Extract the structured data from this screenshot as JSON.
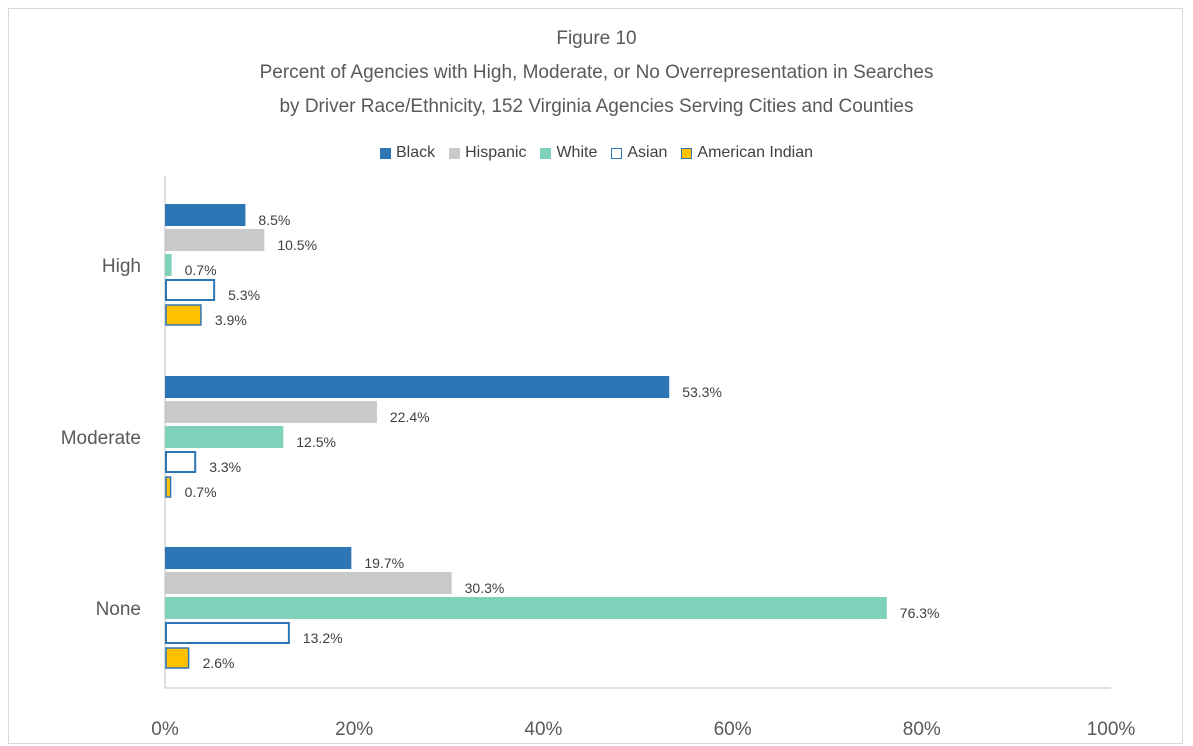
{
  "chart_data": {
    "type": "bar",
    "orientation": "horizontal",
    "title": "Figure 10",
    "subtitle_lines": [
      "Percent of Agencies with High, Moderate, or No Overrepresentation in Searches",
      "by Driver Race/Ethnicity, 152 Virginia Agencies Serving Cities and Counties"
    ],
    "categories": [
      "High",
      "Moderate",
      "None"
    ],
    "series": [
      {
        "name": "Black",
        "values": [
          8.5,
          53.3,
          19.7
        ],
        "labels": [
          "8.5%",
          "53.3%",
          "19.7%"
        ],
        "color": "#2e75b6",
        "style": "filled"
      },
      {
        "name": "Hispanic",
        "values": [
          10.5,
          22.4,
          30.3
        ],
        "labels": [
          "10.5%",
          "22.4%",
          "30.3%"
        ],
        "color": "#c9c9c9",
        "style": "filled"
      },
      {
        "name": "White",
        "values": [
          0.7,
          12.5,
          76.3
        ],
        "labels": [
          "0.7%",
          "12.5%",
          "76.3%"
        ],
        "color": "#7fd1bb",
        "style": "filled"
      },
      {
        "name": "Asian",
        "values": [
          5.3,
          3.3,
          13.2
        ],
        "labels": [
          "5.3%",
          "3.3%",
          "13.2%"
        ],
        "color": "#2e75b6",
        "style": "outline"
      },
      {
        "name": "American Indian",
        "values": [
          3.9,
          0.7,
          2.6
        ],
        "labels": [
          "3.9%",
          "0.7%",
          "2.6%"
        ],
        "color": "#ffc000",
        "style": "filled-outlined",
        "outline": "#2e75b6"
      }
    ],
    "x_ticks": [
      "0%",
      "20%",
      "40%",
      "60%",
      "80%",
      "100%"
    ],
    "xlim": [
      0,
      100
    ],
    "xlabel": "",
    "ylabel": "",
    "grid": false,
    "legend_position": "top"
  }
}
